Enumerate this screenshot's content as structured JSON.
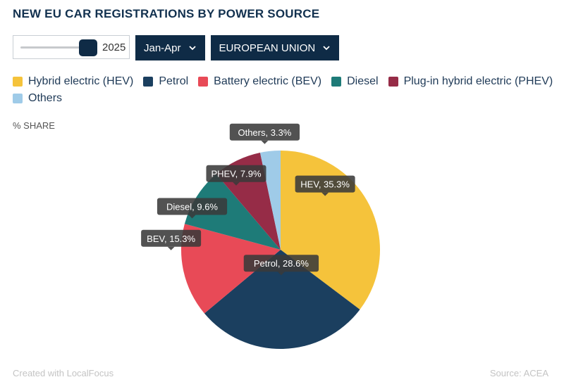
{
  "header": {
    "title": "NEW EU CAR REGISTRATIONS BY POWER SOURCE"
  },
  "controls": {
    "year": "2025",
    "period": "Jan-Apr",
    "region": "EUROPEAN UNION"
  },
  "unit_label": "% SHARE",
  "footer": {
    "credit": "Created with LocalFocus",
    "source": "Source: ACEA"
  },
  "colors": {
    "hev": "#f5c33b",
    "petrol": "#1b3f5f",
    "bev": "#e84a57",
    "diesel": "#1e7b78",
    "phev": "#962c47",
    "others": "#9fcbe8",
    "dropdown_bg": "#0f2b46"
  },
  "chart_data": {
    "type": "pie",
    "legend_position": "top",
    "legend": [
      {
        "name": "Hybrid electric (HEV)",
        "color": "#f5c33b"
      },
      {
        "name": "Petrol",
        "color": "#1b3f5f"
      },
      {
        "name": "Battery electric (BEV)",
        "color": "#e84a57"
      },
      {
        "name": "Diesel",
        "color": "#1e7b78"
      },
      {
        "name": "Plug-in hybrid electric (PHEV)",
        "color": "#962c47"
      },
      {
        "name": "Others",
        "color": "#9fcbe8"
      }
    ],
    "slices": [
      {
        "key": "hev",
        "label": "HEV, 35.3%",
        "value": 35.3,
        "color": "#f5c33b"
      },
      {
        "key": "petrol",
        "label": "Petrol, 28.6%",
        "value": 28.6,
        "color": "#1b3f5f"
      },
      {
        "key": "bev",
        "label": "BEV, 15.3%",
        "value": 15.3,
        "color": "#e84a57"
      },
      {
        "key": "diesel",
        "label": "Diesel, 9.6%",
        "value": 9.6,
        "color": "#1e7b78"
      },
      {
        "key": "phev",
        "label": "PHEV, 7.9%",
        "value": 7.9,
        "color": "#962c47"
      },
      {
        "key": "others",
        "label": "Others, 3.3%",
        "value": 3.3,
        "color": "#9fcbe8"
      }
    ]
  }
}
